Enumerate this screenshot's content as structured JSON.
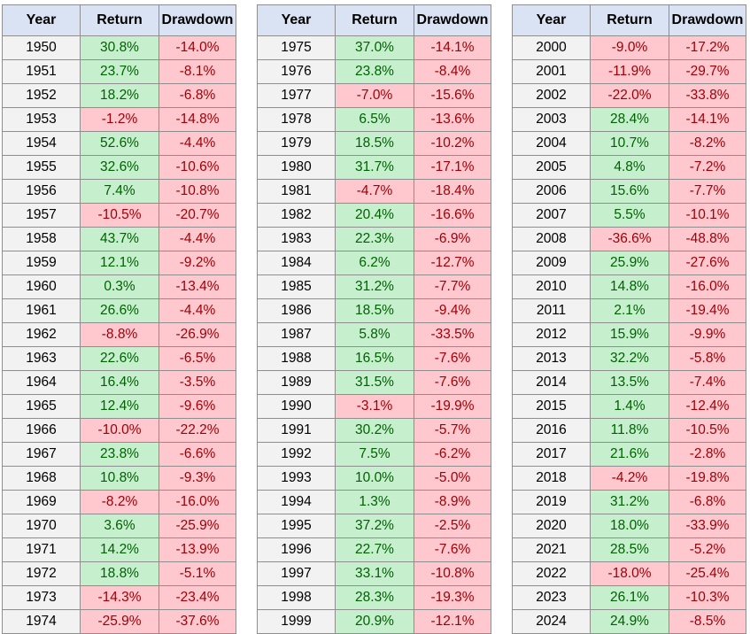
{
  "headers": {
    "year": "Year",
    "return": "Return",
    "drawdown": "Drawdown"
  },
  "colors": {
    "header_bg": "#dae3f3",
    "positive_bg": "#c6efce",
    "positive_text": "#006100",
    "negative_bg": "#ffc7ce",
    "negative_text": "#9c0006",
    "year_bg": "#f2f2f2"
  },
  "tables": [
    {
      "rows": [
        {
          "year": "1950",
          "ret": "30.8%",
          "dd": "-14.0%"
        },
        {
          "year": "1951",
          "ret": "23.7%",
          "dd": "-8.1%"
        },
        {
          "year": "1952",
          "ret": "18.2%",
          "dd": "-6.8%"
        },
        {
          "year": "1953",
          "ret": "-1.2%",
          "dd": "-14.8%"
        },
        {
          "year": "1954",
          "ret": "52.6%",
          "dd": "-4.4%"
        },
        {
          "year": "1955",
          "ret": "32.6%",
          "dd": "-10.6%"
        },
        {
          "year": "1956",
          "ret": "7.4%",
          "dd": "-10.8%"
        },
        {
          "year": "1957",
          "ret": "-10.5%",
          "dd": "-20.7%"
        },
        {
          "year": "1958",
          "ret": "43.7%",
          "dd": "-4.4%"
        },
        {
          "year": "1959",
          "ret": "12.1%",
          "dd": "-9.2%"
        },
        {
          "year": "1960",
          "ret": "0.3%",
          "dd": "-13.4%"
        },
        {
          "year": "1961",
          "ret": "26.6%",
          "dd": "-4.4%"
        },
        {
          "year": "1962",
          "ret": "-8.8%",
          "dd": "-26.9%"
        },
        {
          "year": "1963",
          "ret": "22.6%",
          "dd": "-6.5%"
        },
        {
          "year": "1964",
          "ret": "16.4%",
          "dd": "-3.5%"
        },
        {
          "year": "1965",
          "ret": "12.4%",
          "dd": "-9.6%"
        },
        {
          "year": "1966",
          "ret": "-10.0%",
          "dd": "-22.2%"
        },
        {
          "year": "1967",
          "ret": "23.8%",
          "dd": "-6.6%"
        },
        {
          "year": "1968",
          "ret": "10.8%",
          "dd": "-9.3%"
        },
        {
          "year": "1969",
          "ret": "-8.2%",
          "dd": "-16.0%"
        },
        {
          "year": "1970",
          "ret": "3.6%",
          "dd": "-25.9%"
        },
        {
          "year": "1971",
          "ret": "14.2%",
          "dd": "-13.9%"
        },
        {
          "year": "1972",
          "ret": "18.8%",
          "dd": "-5.1%"
        },
        {
          "year": "1973",
          "ret": "-14.3%",
          "dd": "-23.4%"
        },
        {
          "year": "1974",
          "ret": "-25.9%",
          "dd": "-37.6%"
        }
      ]
    },
    {
      "rows": [
        {
          "year": "1975",
          "ret": "37.0%",
          "dd": "-14.1%"
        },
        {
          "year": "1976",
          "ret": "23.8%",
          "dd": "-8.4%"
        },
        {
          "year": "1977",
          "ret": "-7.0%",
          "dd": "-15.6%"
        },
        {
          "year": "1978",
          "ret": "6.5%",
          "dd": "-13.6%"
        },
        {
          "year": "1979",
          "ret": "18.5%",
          "dd": "-10.2%"
        },
        {
          "year": "1980",
          "ret": "31.7%",
          "dd": "-17.1%"
        },
        {
          "year": "1981",
          "ret": "-4.7%",
          "dd": "-18.4%"
        },
        {
          "year": "1982",
          "ret": "20.4%",
          "dd": "-16.6%"
        },
        {
          "year": "1983",
          "ret": "22.3%",
          "dd": "-6.9%"
        },
        {
          "year": "1984",
          "ret": "6.2%",
          "dd": "-12.7%"
        },
        {
          "year": "1985",
          "ret": "31.2%",
          "dd": "-7.7%"
        },
        {
          "year": "1986",
          "ret": "18.5%",
          "dd": "-9.4%"
        },
        {
          "year": "1987",
          "ret": "5.8%",
          "dd": "-33.5%"
        },
        {
          "year": "1988",
          "ret": "16.5%",
          "dd": "-7.6%"
        },
        {
          "year": "1989",
          "ret": "31.5%",
          "dd": "-7.6%"
        },
        {
          "year": "1990",
          "ret": "-3.1%",
          "dd": "-19.9%"
        },
        {
          "year": "1991",
          "ret": "30.2%",
          "dd": "-5.7%"
        },
        {
          "year": "1992",
          "ret": "7.5%",
          "dd": "-6.2%"
        },
        {
          "year": "1993",
          "ret": "10.0%",
          "dd": "-5.0%"
        },
        {
          "year": "1994",
          "ret": "1.3%",
          "dd": "-8.9%"
        },
        {
          "year": "1995",
          "ret": "37.2%",
          "dd": "-2.5%"
        },
        {
          "year": "1996",
          "ret": "22.7%",
          "dd": "-7.6%"
        },
        {
          "year": "1997",
          "ret": "33.1%",
          "dd": "-10.8%"
        },
        {
          "year": "1998",
          "ret": "28.3%",
          "dd": "-19.3%"
        },
        {
          "year": "1999",
          "ret": "20.9%",
          "dd": "-12.1%"
        }
      ]
    },
    {
      "rows": [
        {
          "year": "2000",
          "ret": "-9.0%",
          "dd": "-17.2%"
        },
        {
          "year": "2001",
          "ret": "-11.9%",
          "dd": "-29.7%"
        },
        {
          "year": "2002",
          "ret": "-22.0%",
          "dd": "-33.8%"
        },
        {
          "year": "2003",
          "ret": "28.4%",
          "dd": "-14.1%"
        },
        {
          "year": "2004",
          "ret": "10.7%",
          "dd": "-8.2%"
        },
        {
          "year": "2005",
          "ret": "4.8%",
          "dd": "-7.2%"
        },
        {
          "year": "2006",
          "ret": "15.6%",
          "dd": "-7.7%"
        },
        {
          "year": "2007",
          "ret": "5.5%",
          "dd": "-10.1%"
        },
        {
          "year": "2008",
          "ret": "-36.6%",
          "dd": "-48.8%"
        },
        {
          "year": "2009",
          "ret": "25.9%",
          "dd": "-27.6%"
        },
        {
          "year": "2010",
          "ret": "14.8%",
          "dd": "-16.0%"
        },
        {
          "year": "2011",
          "ret": "2.1%",
          "dd": "-19.4%"
        },
        {
          "year": "2012",
          "ret": "15.9%",
          "dd": "-9.9%"
        },
        {
          "year": "2013",
          "ret": "32.2%",
          "dd": "-5.8%"
        },
        {
          "year": "2014",
          "ret": "13.5%",
          "dd": "-7.4%"
        },
        {
          "year": "2015",
          "ret": "1.4%",
          "dd": "-12.4%"
        },
        {
          "year": "2016",
          "ret": "11.8%",
          "dd": "-10.5%"
        },
        {
          "year": "2017",
          "ret": "21.6%",
          "dd": "-2.8%"
        },
        {
          "year": "2018",
          "ret": "-4.2%",
          "dd": "-19.8%"
        },
        {
          "year": "2019",
          "ret": "31.2%",
          "dd": "-6.8%"
        },
        {
          "year": "2020",
          "ret": "18.0%",
          "dd": "-33.9%"
        },
        {
          "year": "2021",
          "ret": "28.5%",
          "dd": "-5.2%"
        },
        {
          "year": "2022",
          "ret": "-18.0%",
          "dd": "-25.4%"
        },
        {
          "year": "2023",
          "ret": "26.1%",
          "dd": "-10.3%"
        },
        {
          "year": "2024",
          "ret": "24.9%",
          "dd": "-8.5%"
        }
      ]
    }
  ]
}
